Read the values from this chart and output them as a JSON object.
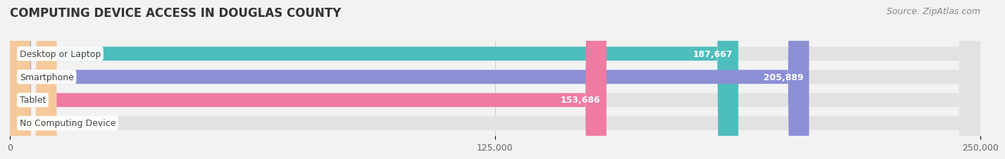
{
  "title": "COMPUTING DEVICE ACCESS IN DOUGLAS COUNTY",
  "source": "Source: ZipAtlas.com",
  "categories": [
    "Desktop or Laptop",
    "Smartphone",
    "Tablet",
    "No Computing Device"
  ],
  "values": [
    187667,
    205889,
    153686,
    12062
  ],
  "bar_colors": [
    "#4dbdbd",
    "#8b8fd4",
    "#f07ba0",
    "#f5c99a"
  ],
  "xlim": [
    0,
    250000
  ],
  "xtick_labels": [
    "0",
    "125,000",
    "250,000"
  ],
  "xtick_values": [
    0,
    125000,
    250000
  ],
  "background_color": "#f2f2f2",
  "bar_bg_color": "#e2e2e2",
  "title_color": "#333333",
  "title_fontsize": 12,
  "bar_height": 0.6,
  "value_fontsize": 9,
  "label_fontsize": 9,
  "tick_fontsize": 9,
  "source_fontsize": 9
}
